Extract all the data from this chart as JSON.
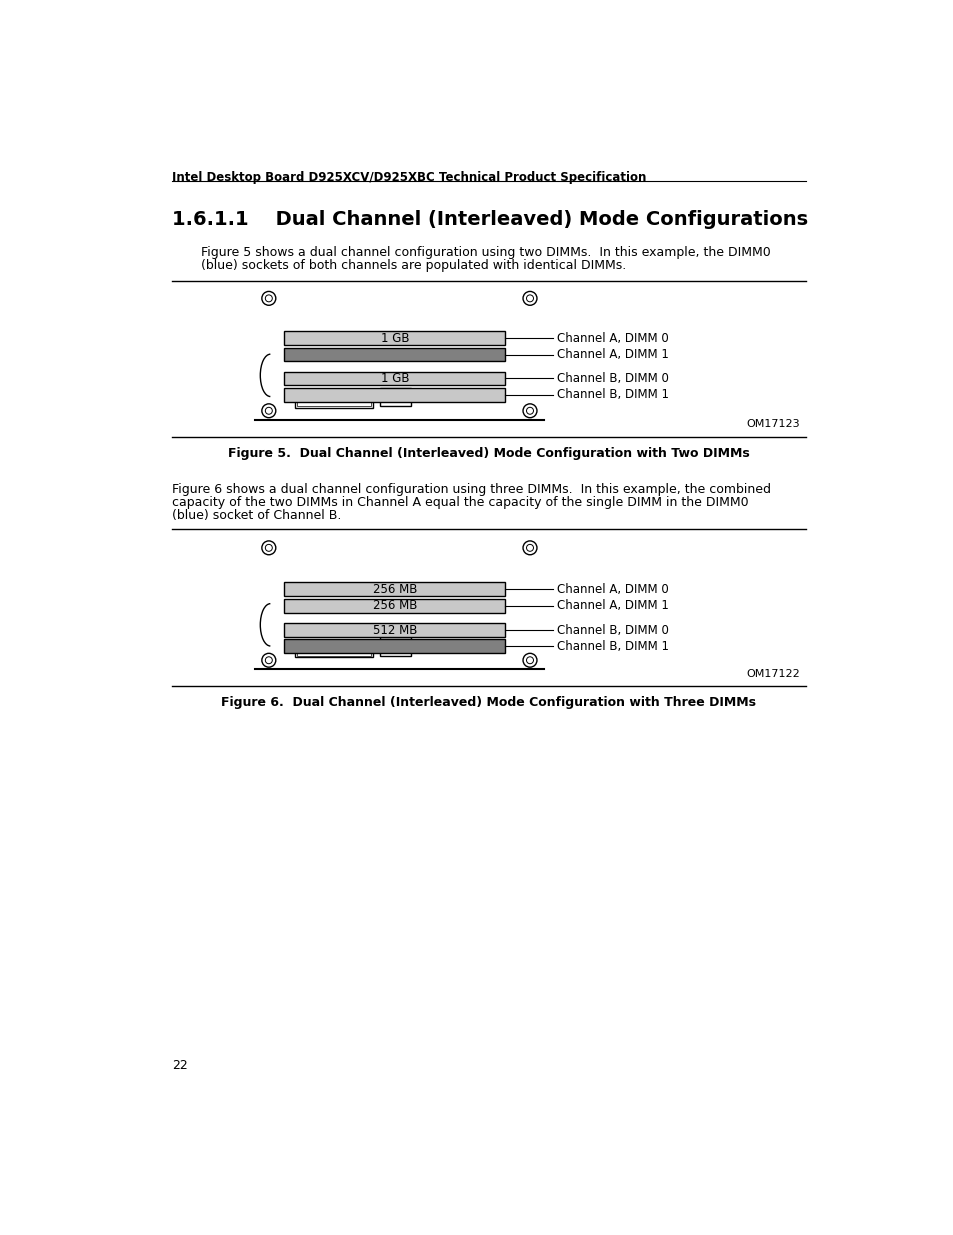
{
  "page_title": "Intel Desktop Board D925XCV/D925XBC Technical Product Specification",
  "section_title": "1.6.1.1    Dual Channel (Interleaved) Mode Configurations",
  "para1_line1": "Figure 5 shows a dual channel configuration using two DIMMs.  In this example, the DIMM0",
  "para1_line2": "(blue) sockets of both channels are populated with identical DIMMs.",
  "fig1_caption": "Figure 5.  Dual Channel (Interleaved) Mode Configuration with Two DIMMs",
  "fig1_id": "OM17123",
  "fig1_dimm0_label": "1 GB",
  "fig1_dimm1_label": "1 GB",
  "fig1_ch_a_dimm0": "Channel A, DIMM 0",
  "fig1_ch_a_dimm1": "Channel A, DIMM 1",
  "fig1_ch_b_dimm0": "Channel B, DIMM 0",
  "fig1_ch_b_dimm1": "Channel B, DIMM 1",
  "para2_line1": "Figure 6 shows a dual channel configuration using three DIMMs.  In this example, the combined",
  "para2_line2": "capacity of the two DIMMs in Channel A equal the capacity of the single DIMM in the DIMM0",
  "para2_line3": "(blue) socket of Channel B.",
  "fig2_caption": "Figure 6.  Dual Channel (Interleaved) Mode Configuration with Three DIMMs",
  "fig2_id": "OM17122",
  "fig2_ch_a_dimm0": "256 MB",
  "fig2_ch_a_dimm1": "256 MB",
  "fig2_ch_b_dimm0": "512 MB",
  "fig2_ch_a_label0": "Channel A, DIMM 0",
  "fig2_ch_a_label1": "Channel A, DIMM 1",
  "fig2_ch_b_label0": "Channel B, DIMM 0",
  "fig2_ch_b_label1": "Channel B, DIMM 1",
  "page_number": "22",
  "bg_color": "#ffffff",
  "dimm_light_color": "#c8c8c8",
  "dimm_dark_color": "#808080",
  "line_color": "#000000",
  "header_fontsize": 8.5,
  "section_fontsize": 14,
  "body_fontsize": 9,
  "caption_fontsize": 9,
  "label_fontsize": 8.5,
  "id_fontsize": 8,
  "page_num_fontsize": 9
}
